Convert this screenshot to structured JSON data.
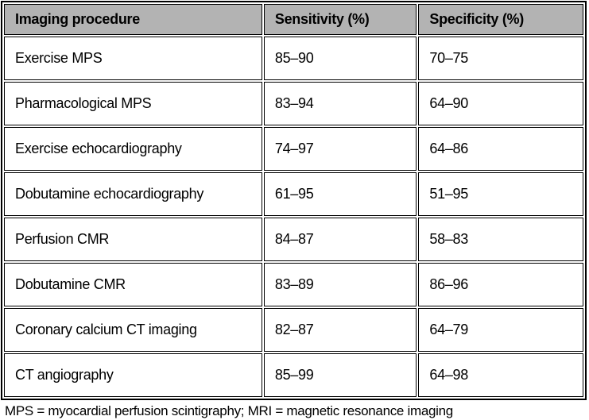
{
  "table": {
    "columns": [
      "Imaging procedure",
      "Sensitivity (%)",
      "Specificity (%)"
    ],
    "rows": [
      {
        "procedure": "Exercise MPS",
        "sensitivity": "85–90",
        "specificity": "70–75"
      },
      {
        "procedure": "Pharmacological MPS",
        "sensitivity": "83–94",
        "specificity": "64–90"
      },
      {
        "procedure": "Exercise echocardiography",
        "sensitivity": "74–97",
        "specificity": "64–86"
      },
      {
        "procedure": "Dobutamine echocardiography",
        "sensitivity": "61–95",
        "specificity": "51–95"
      },
      {
        "procedure": "Perfusion CMR",
        "sensitivity": "84–87",
        "specificity": "58–83"
      },
      {
        "procedure": "Dobutamine CMR",
        "sensitivity": "83–89",
        "specificity": "86–96"
      },
      {
        "procedure": "Coronary calcium CT imaging",
        "sensitivity": "82–87",
        "specificity": "64–79"
      },
      {
        "procedure": "CT angiography",
        "sensitivity": "85–99",
        "specificity": "64–98"
      }
    ],
    "footnote": "MPS = myocardial perfusion scintigraphy; MRI = magnetic resonance imaging"
  },
  "colors": {
    "header_bg": "#b3b3b3",
    "cell_bg": "#ffffff",
    "border": "#000000",
    "text": "#000000"
  }
}
